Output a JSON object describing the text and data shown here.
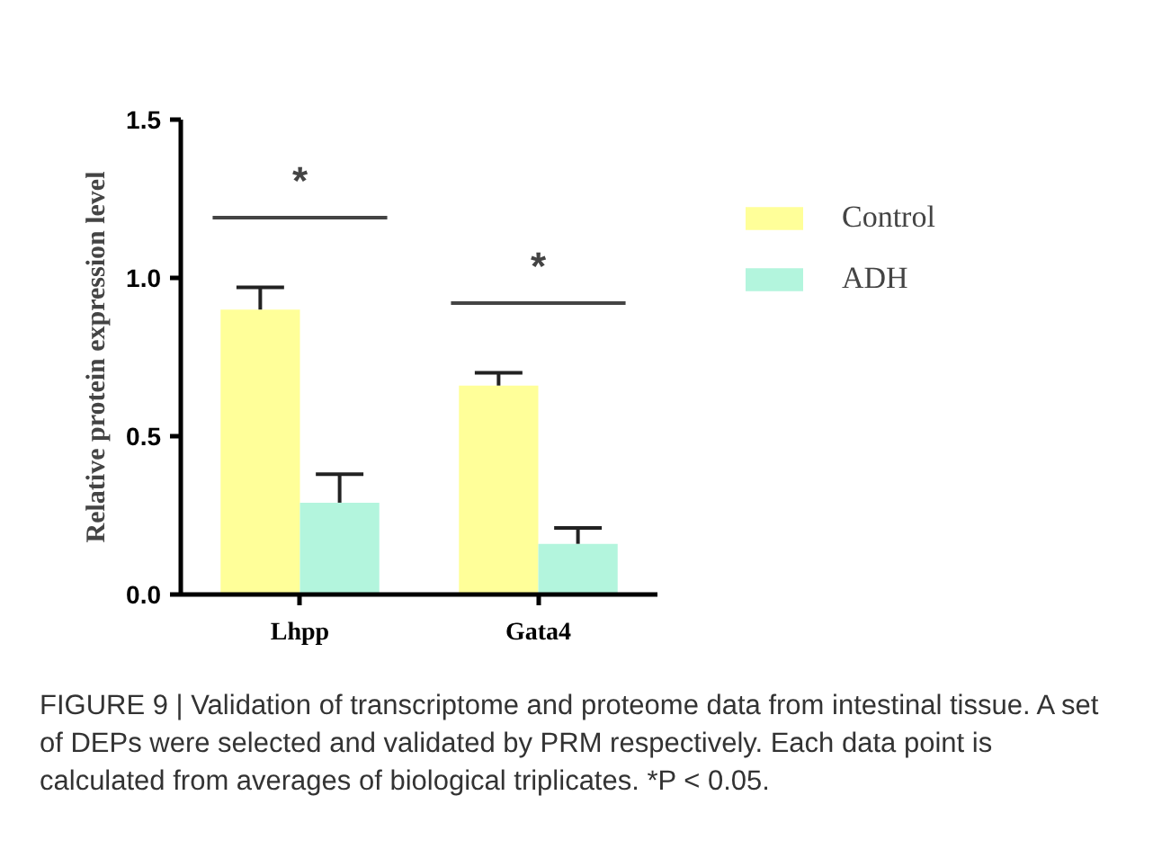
{
  "chart_data": {
    "type": "bar",
    "ylabel": "Relative protein expression level",
    "categories": [
      "Lhpp",
      "Gata4"
    ],
    "series": [
      {
        "name": "Control",
        "color": "#ffff99",
        "values": [
          0.9,
          0.66
        ],
        "errors": [
          [
            0.9,
            0.97
          ],
          [
            0.66,
            0.7
          ]
        ]
      },
      {
        "name": "ADH",
        "color": "#b3f5dd",
        "values": [
          0.29,
          0.16
        ],
        "errors": [
          [
            0.29,
            0.38
          ],
          [
            0.16,
            0.21
          ]
        ]
      }
    ],
    "ylim": [
      0,
      1.5
    ],
    "yticks": [
      {
        "value": 0,
        "label": "0.0"
      },
      0.5,
      {
        "value": 1,
        "label": "1.0"
      },
      1.5
    ],
    "grid": false,
    "legend": "top right",
    "annotations": [
      "*",
      "*",
      "FIGURE 9 | Validation of transcriptome and proteome data from intestinal tissue. A set of DEPs were selected and validated by PRM respectively. Each data point is calculated from averages of biological triplicates. *P < 0.05."
    ]
  }
}
